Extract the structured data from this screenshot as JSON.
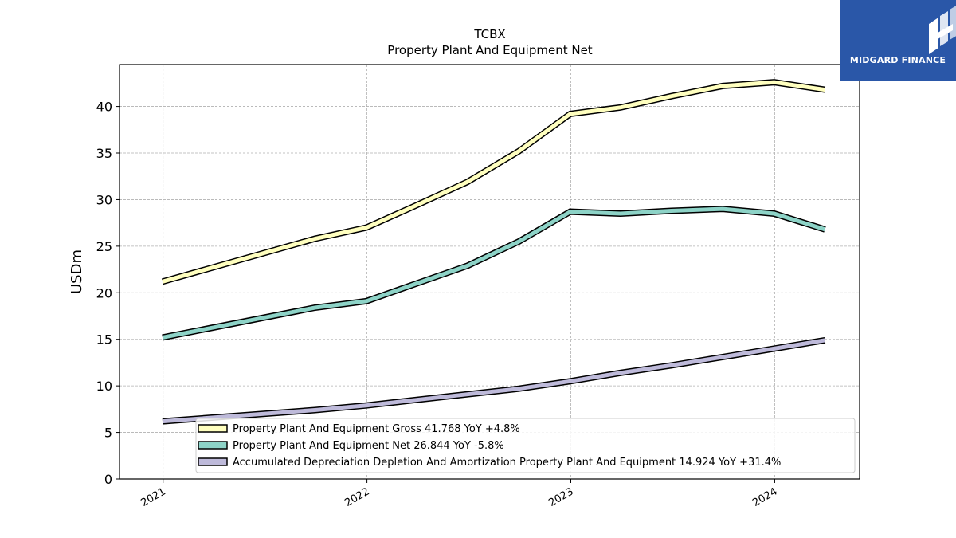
{
  "brand": {
    "name": "MIDGARD FINANCE",
    "color": "#2a57a8"
  },
  "chart_data": {
    "type": "line",
    "title": "TCBX",
    "subtitle": "Property Plant And Equipment Net",
    "xlabel": "",
    "ylabel": "USDm",
    "ylim": [
      0,
      44.5
    ],
    "yticks": [
      0,
      5,
      10,
      15,
      20,
      25,
      30,
      35,
      40
    ],
    "xlim": [
      "2020-10-15",
      "2024-06-01"
    ],
    "xticks": [
      "2021",
      "2022",
      "2023",
      "2024"
    ],
    "grid": true,
    "legend_position": "lower-right",
    "x": [
      "2020-12-31",
      "2021-09-30",
      "2021-12-31",
      "2022-03-31",
      "2022-06-30",
      "2022-09-30",
      "2022-12-31",
      "2023-03-31",
      "2023-06-30",
      "2023-09-30",
      "2023-12-31",
      "2024-03-31"
    ],
    "series": [
      {
        "name": "Property Plant And Equipment Gross",
        "legend": "Property Plant And Equipment Gross  41.768 YoY +4.8%",
        "color": "#ffffbf",
        "values": [
          21.2,
          25.8,
          27.0,
          29.4,
          31.9,
          35.2,
          39.2,
          39.9,
          41.1,
          42.2,
          42.6,
          41.8
        ]
      },
      {
        "name": "Property Plant And Equipment Net",
        "legend": "Property Plant And Equipment Net  26.844 YoY -5.8%",
        "color": "#8dd3c7",
        "values": [
          15.2,
          18.4,
          19.1,
          21.0,
          22.9,
          25.5,
          28.7,
          28.5,
          28.8,
          29.0,
          28.5,
          26.8
        ]
      },
      {
        "name": "Accumulated Depreciation Depletion And Amortization Property Plant And Equipment",
        "legend": "Accumulated Depreciation Depletion And Amortization Property Plant And Equipment  14.924 YoY +31.4%",
        "color": "#bebada",
        "values": [
          6.2,
          7.4,
          7.9,
          8.5,
          9.1,
          9.7,
          10.5,
          11.4,
          12.2,
          13.1,
          14.0,
          14.9
        ]
      }
    ]
  }
}
